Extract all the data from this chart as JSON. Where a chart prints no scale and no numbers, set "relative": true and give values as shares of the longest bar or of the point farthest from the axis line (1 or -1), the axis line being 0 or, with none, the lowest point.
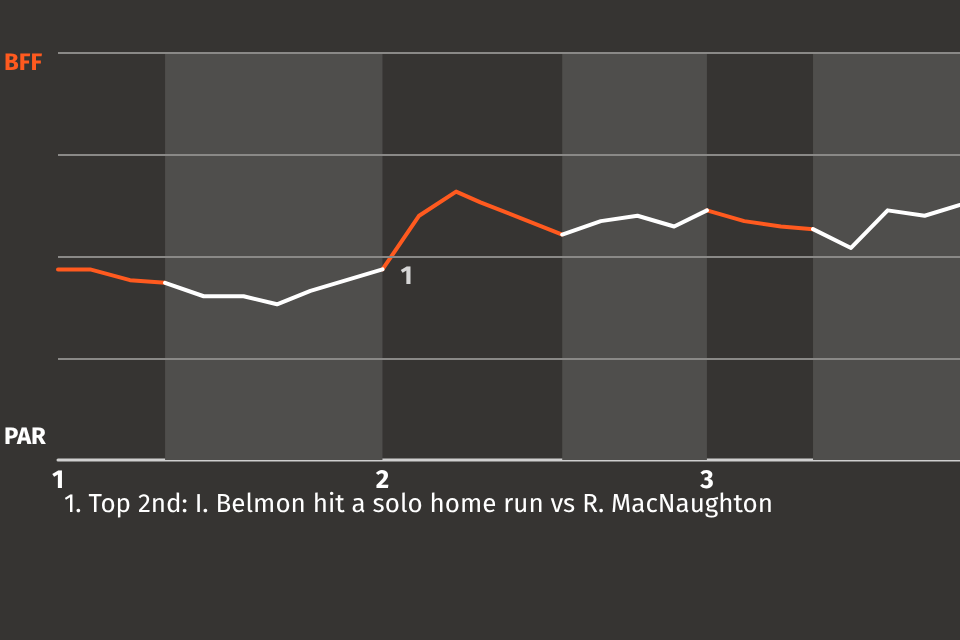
{
  "chart_data": {
    "type": "line",
    "xlim": [
      1,
      3.78
    ],
    "xticks": [
      1,
      2,
      3
    ],
    "relative": true,
    "marker": "none",
    "line_style": "solid",
    "ref_lines": [
      {
        "axis": "y",
        "value": 0.38,
        "color": "#8a8987"
      },
      {
        "axis": "y",
        "value": 0.76,
        "color": "#8a8987"
      },
      {
        "axis": "y",
        "value": 1.14,
        "color": "#8a8987"
      },
      {
        "axis": "y",
        "value": 1.52,
        "color": "#8a8987"
      }
    ],
    "series": [
      {
        "color": "#ff5a1f",
        "x": [
          1,
          1.099,
          1.222,
          1.33,
          1.5,
          2,
          2.113,
          2.227,
          2.302,
          2.554,
          2.8,
          3,
          3.115,
          3.228,
          3.327
        ],
        "values": [
          0.71,
          0.71,
          0.67,
          0.66,
          null,
          0.71,
          0.91,
          1,
          0.96,
          0.84,
          null,
          0.93,
          0.89,
          0.87,
          0.86
        ]
      },
      {
        "color": "#ffffff",
        "x": [
          1.33,
          1.449,
          1.572,
          1.675,
          1.778,
          2,
          2.3,
          2.554,
          2.673,
          2.786,
          2.899,
          3,
          3.2,
          3.327,
          3.444,
          3.557,
          3.671,
          3.78
        ],
        "values": [
          0.66,
          0.61,
          0.61,
          0.58,
          0.63,
          0.71,
          null,
          0.84,
          0.89,
          0.91,
          0.87,
          0.93,
          null,
          0.86,
          0.79,
          0.93,
          0.91,
          0.95
        ]
      }
    ],
    "bands": [
      {
        "axis": "x",
        "from": 1.33,
        "to": 2,
        "color": "#4f4e4c"
      },
      {
        "axis": "x",
        "from": 2.554,
        "to": 3,
        "color": "#4f4e4c"
      },
      {
        "axis": "x",
        "from": 3.327,
        "to": 3.78,
        "color": "#4f4e4c"
      }
    ],
    "annotations": [
      "BFF",
      "PAR",
      {
        "text": "1",
        "x": 2,
        "y": 0.71
      },
      "1. Top 2nd: I. Belmon hit a solo home run vs R. MacNaughton"
    ]
  }
}
